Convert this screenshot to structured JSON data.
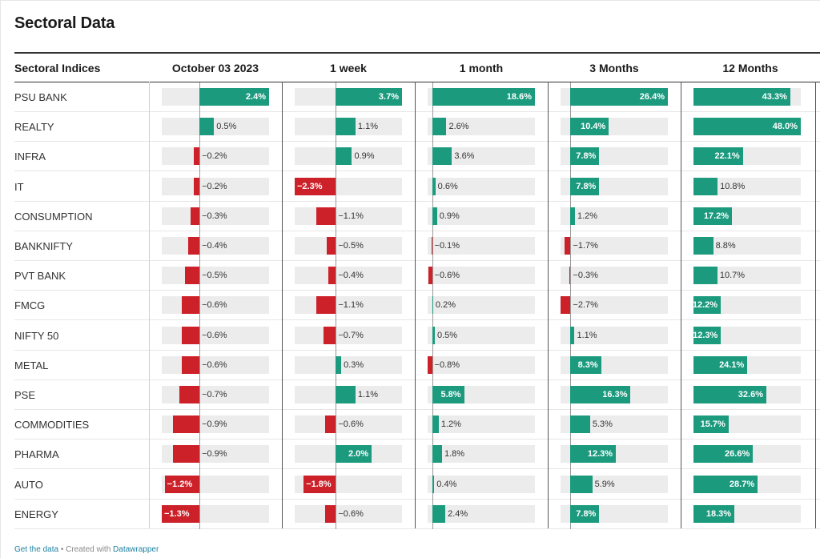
{
  "title": "Sectoral Data",
  "footer": {
    "get_data": "Get the data",
    "created_with": "Created with",
    "datawrapper": "Datawrapper",
    "separator": "•"
  },
  "colors": {
    "positive": "#1b9a7e",
    "negative": "#cc2129",
    "track": "#ececec"
  },
  "chart_data": {
    "type": "table",
    "columns": [
      "Sectoral Indices",
      "October 03 2023",
      "1 week",
      "1 month",
      "3 Months",
      "12 Months"
    ],
    "value_unit": "%",
    "rows": [
      {
        "name": "PSU BANK",
        "values": [
          2.4,
          3.7,
          18.6,
          26.4,
          43.3
        ]
      },
      {
        "name": "REALTY",
        "values": [
          0.5,
          1.1,
          2.6,
          10.4,
          48.0
        ]
      },
      {
        "name": "INFRA",
        "values": [
          -0.2,
          0.9,
          3.6,
          7.8,
          22.1
        ]
      },
      {
        "name": "IT",
        "values": [
          -0.2,
          -2.3,
          0.6,
          7.8,
          10.8
        ]
      },
      {
        "name": "CONSUMPTION",
        "values": [
          -0.3,
          -1.1,
          0.9,
          1.2,
          17.2
        ]
      },
      {
        "name": "BANKNIFTY",
        "values": [
          -0.4,
          -0.5,
          -0.1,
          -1.7,
          8.8
        ]
      },
      {
        "name": "PVT BANK",
        "values": [
          -0.5,
          -0.4,
          -0.6,
          -0.3,
          10.7
        ]
      },
      {
        "name": "FMCG",
        "values": [
          -0.6,
          -1.1,
          0.2,
          -2.7,
          12.2
        ]
      },
      {
        "name": "NIFTY 50",
        "values": [
          -0.6,
          -0.7,
          0.5,
          1.1,
          12.3
        ]
      },
      {
        "name": "METAL",
        "values": [
          -0.6,
          0.3,
          -0.8,
          8.3,
          24.1
        ]
      },
      {
        "name": "PSE",
        "values": [
          -0.7,
          1.1,
          5.8,
          16.3,
          32.6
        ]
      },
      {
        "name": "COMMODITIES",
        "values": [
          -0.9,
          -0.6,
          1.2,
          5.3,
          15.7
        ]
      },
      {
        "name": "PHARMA",
        "values": [
          -0.9,
          2.0,
          1.8,
          12.3,
          26.6
        ]
      },
      {
        "name": "AUTO",
        "values": [
          -1.2,
          -1.8,
          0.4,
          5.9,
          28.7
        ]
      },
      {
        "name": "ENERGY",
        "values": [
          -1.3,
          -0.6,
          2.4,
          7.8,
          18.3
        ]
      }
    ],
    "column_ranges": [
      [
        -1.3,
        2.4
      ],
      [
        -2.3,
        3.7
      ],
      [
        -0.8,
        18.6
      ],
      [
        -2.7,
        26.4
      ],
      [
        0,
        48.0
      ]
    ]
  }
}
